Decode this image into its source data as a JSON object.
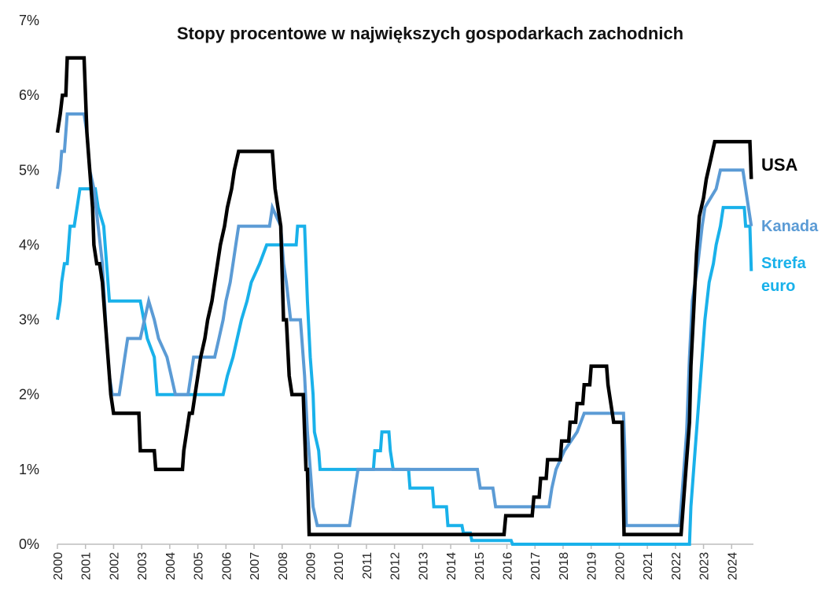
{
  "chart_data": {
    "type": "line",
    "title": "Stopy procentowe w największych gospodarkach zachodnich",
    "xlabel": "",
    "ylabel": "",
    "ylim": [
      0,
      7
    ],
    "xlim": [
      2000,
      2024.75
    ],
    "y_ticks": [
      "0%",
      "1%",
      "2%",
      "3%",
      "4%",
      "5%",
      "6%",
      "7%"
    ],
    "x_ticks": [
      "2000",
      "2001",
      "2002",
      "2003",
      "2004",
      "2005",
      "2006",
      "2007",
      "2008",
      "2009",
      "2010",
      "2011",
      "2012",
      "2013",
      "2014",
      "2015",
      "2016",
      "2017",
      "2018",
      "2019",
      "2020",
      "2021",
      "2022",
      "2023",
      "2024"
    ],
    "grid": false,
    "series": [
      {
        "name": "USA",
        "color": "#000000",
        "label_lines": [
          "USA"
        ],
        "points": [
          [
            2000.0,
            5.5
          ],
          [
            2000.1,
            5.75
          ],
          [
            2000.18,
            6.0
          ],
          [
            2000.3,
            6.0
          ],
          [
            2000.35,
            6.5
          ],
          [
            2000.95,
            6.5
          ],
          [
            2001.0,
            6.0
          ],
          [
            2001.05,
            5.5
          ],
          [
            2001.15,
            5.0
          ],
          [
            2001.25,
            4.5
          ],
          [
            2001.3,
            4.0
          ],
          [
            2001.4,
            3.75
          ],
          [
            2001.5,
            3.75
          ],
          [
            2001.6,
            3.5
          ],
          [
            2001.7,
            3.0
          ],
          [
            2001.8,
            2.5
          ],
          [
            2001.9,
            2.0
          ],
          [
            2002.0,
            1.75
          ],
          [
            2002.9,
            1.75
          ],
          [
            2002.95,
            1.25
          ],
          [
            2003.45,
            1.25
          ],
          [
            2003.5,
            1.0
          ],
          [
            2004.45,
            1.0
          ],
          [
            2004.5,
            1.25
          ],
          [
            2004.6,
            1.5
          ],
          [
            2004.7,
            1.75
          ],
          [
            2004.8,
            1.75
          ],
          [
            2004.9,
            2.0
          ],
          [
            2005.0,
            2.25
          ],
          [
            2005.1,
            2.5
          ],
          [
            2005.25,
            2.75
          ],
          [
            2005.35,
            3.0
          ],
          [
            2005.5,
            3.25
          ],
          [
            2005.6,
            3.5
          ],
          [
            2005.7,
            3.75
          ],
          [
            2005.8,
            4.0
          ],
          [
            2005.95,
            4.25
          ],
          [
            2006.05,
            4.5
          ],
          [
            2006.2,
            4.75
          ],
          [
            2006.3,
            5.0
          ],
          [
            2006.45,
            5.25
          ],
          [
            2007.65,
            5.25
          ],
          [
            2007.75,
            4.75
          ],
          [
            2007.85,
            4.5
          ],
          [
            2007.95,
            4.25
          ],
          [
            2008.05,
            3.0
          ],
          [
            2008.15,
            3.0
          ],
          [
            2008.25,
            2.25
          ],
          [
            2008.35,
            2.0
          ],
          [
            2008.75,
            2.0
          ],
          [
            2008.8,
            1.5
          ],
          [
            2008.85,
            1.0
          ],
          [
            2008.9,
            1.0
          ],
          [
            2008.96,
            0.13
          ],
          [
            2015.9,
            0.13
          ],
          [
            2015.96,
            0.38
          ],
          [
            2016.9,
            0.38
          ],
          [
            2016.96,
            0.63
          ],
          [
            2017.15,
            0.63
          ],
          [
            2017.2,
            0.88
          ],
          [
            2017.4,
            0.88
          ],
          [
            2017.45,
            1.13
          ],
          [
            2017.9,
            1.13
          ],
          [
            2017.95,
            1.38
          ],
          [
            2018.2,
            1.38
          ],
          [
            2018.25,
            1.63
          ],
          [
            2018.45,
            1.63
          ],
          [
            2018.5,
            1.88
          ],
          [
            2018.7,
            1.88
          ],
          [
            2018.75,
            2.13
          ],
          [
            2018.95,
            2.13
          ],
          [
            2019.0,
            2.38
          ],
          [
            2019.55,
            2.38
          ],
          [
            2019.6,
            2.13
          ],
          [
            2019.7,
            1.88
          ],
          [
            2019.8,
            1.63
          ],
          [
            2020.1,
            1.63
          ],
          [
            2020.17,
            0.13
          ],
          [
            2022.2,
            0.13
          ],
          [
            2022.25,
            0.38
          ],
          [
            2022.35,
            0.88
          ],
          [
            2022.5,
            1.63
          ],
          [
            2022.55,
            2.38
          ],
          [
            2022.65,
            3.13
          ],
          [
            2022.75,
            3.88
          ],
          [
            2022.85,
            4.38
          ],
          [
            2023.0,
            4.63
          ],
          [
            2023.1,
            4.88
          ],
          [
            2023.25,
            5.13
          ],
          [
            2023.4,
            5.38
          ],
          [
            2024.65,
            5.38
          ],
          [
            2024.7,
            4.88
          ]
        ]
      },
      {
        "name": "Kanada",
        "color": "#5b9bd5",
        "label_lines": [
          "Kanada"
        ],
        "points": [
          [
            2000.0,
            4.75
          ],
          [
            2000.1,
            5.0
          ],
          [
            2000.15,
            5.25
          ],
          [
            2000.25,
            5.25
          ],
          [
            2000.35,
            5.75
          ],
          [
            2000.95,
            5.75
          ],
          [
            2001.05,
            5.5
          ],
          [
            2001.15,
            5.0
          ],
          [
            2001.3,
            4.75
          ],
          [
            2001.45,
            4.25
          ],
          [
            2001.6,
            3.75
          ],
          [
            2001.75,
            2.75
          ],
          [
            2001.85,
            2.25
          ],
          [
            2001.95,
            2.0
          ],
          [
            2002.2,
            2.0
          ],
          [
            2002.3,
            2.25
          ],
          [
            2002.4,
            2.5
          ],
          [
            2002.5,
            2.75
          ],
          [
            2002.95,
            2.75
          ],
          [
            2003.1,
            3.0
          ],
          [
            2003.25,
            3.25
          ],
          [
            2003.45,
            3.0
          ],
          [
            2003.6,
            2.75
          ],
          [
            2003.9,
            2.5
          ],
          [
            2004.05,
            2.25
          ],
          [
            2004.2,
            2.0
          ],
          [
            2004.65,
            2.0
          ],
          [
            2004.75,
            2.25
          ],
          [
            2004.85,
            2.5
          ],
          [
            2005.6,
            2.5
          ],
          [
            2005.75,
            2.75
          ],
          [
            2005.9,
            3.0
          ],
          [
            2006.0,
            3.25
          ],
          [
            2006.15,
            3.5
          ],
          [
            2006.25,
            3.75
          ],
          [
            2006.35,
            4.0
          ],
          [
            2006.45,
            4.25
          ],
          [
            2007.55,
            4.25
          ],
          [
            2007.65,
            4.5
          ],
          [
            2007.95,
            4.25
          ],
          [
            2008.05,
            3.75
          ],
          [
            2008.15,
            3.5
          ],
          [
            2008.3,
            3.0
          ],
          [
            2008.65,
            3.0
          ],
          [
            2008.8,
            2.25
          ],
          [
            2008.9,
            1.5
          ],
          [
            2009.0,
            1.0
          ],
          [
            2009.1,
            0.5
          ],
          [
            2009.25,
            0.25
          ],
          [
            2010.4,
            0.25
          ],
          [
            2010.5,
            0.5
          ],
          [
            2010.6,
            0.75
          ],
          [
            2010.7,
            1.0
          ],
          [
            2014.95,
            1.0
          ],
          [
            2015.05,
            0.75
          ],
          [
            2015.5,
            0.75
          ],
          [
            2015.6,
            0.5
          ],
          [
            2017.5,
            0.5
          ],
          [
            2017.6,
            0.75
          ],
          [
            2017.75,
            1.0
          ],
          [
            2018.05,
            1.25
          ],
          [
            2018.5,
            1.5
          ],
          [
            2018.75,
            1.75
          ],
          [
            2020.15,
            1.75
          ],
          [
            2020.2,
            1.25
          ],
          [
            2020.25,
            0.25
          ],
          [
            2022.15,
            0.25
          ],
          [
            2022.2,
            0.5
          ],
          [
            2022.3,
            1.0
          ],
          [
            2022.4,
            1.5
          ],
          [
            2022.5,
            2.5
          ],
          [
            2022.6,
            3.25
          ],
          [
            2022.8,
            3.75
          ],
          [
            2022.95,
            4.25
          ],
          [
            2023.05,
            4.5
          ],
          [
            2023.45,
            4.75
          ],
          [
            2023.6,
            5.0
          ],
          [
            2024.4,
            5.0
          ],
          [
            2024.5,
            4.75
          ],
          [
            2024.6,
            4.5
          ],
          [
            2024.7,
            4.25
          ]
        ]
      },
      {
        "name": "Strefa euro",
        "color": "#19b1ea",
        "label_lines": [
          "Strefa",
          "euro"
        ],
        "points": [
          [
            2000.0,
            3.0
          ],
          [
            2000.1,
            3.25
          ],
          [
            2000.15,
            3.5
          ],
          [
            2000.25,
            3.75
          ],
          [
            2000.35,
            3.75
          ],
          [
            2000.45,
            4.25
          ],
          [
            2000.6,
            4.25
          ],
          [
            2000.7,
            4.5
          ],
          [
            2000.8,
            4.75
          ],
          [
            2001.35,
            4.75
          ],
          [
            2001.45,
            4.5
          ],
          [
            2001.65,
            4.25
          ],
          [
            2001.75,
            3.75
          ],
          [
            2001.8,
            3.5
          ],
          [
            2001.85,
            3.25
          ],
          [
            2002.95,
            3.25
          ],
          [
            2003.2,
            2.75
          ],
          [
            2003.45,
            2.5
          ],
          [
            2003.55,
            2.0
          ],
          [
            2005.9,
            2.0
          ],
          [
            2006.05,
            2.25
          ],
          [
            2006.25,
            2.5
          ],
          [
            2006.4,
            2.75
          ],
          [
            2006.55,
            3.0
          ],
          [
            2006.75,
            3.25
          ],
          [
            2006.9,
            3.5
          ],
          [
            2007.2,
            3.75
          ],
          [
            2007.45,
            4.0
          ],
          [
            2008.5,
            4.0
          ],
          [
            2008.55,
            4.25
          ],
          [
            2008.8,
            4.25
          ],
          [
            2008.85,
            3.75
          ],
          [
            2008.9,
            3.25
          ],
          [
            2009.0,
            2.5
          ],
          [
            2009.1,
            2.0
          ],
          [
            2009.15,
            1.5
          ],
          [
            2009.3,
            1.25
          ],
          [
            2009.35,
            1.0
          ],
          [
            2011.25,
            1.0
          ],
          [
            2011.3,
            1.25
          ],
          [
            2011.5,
            1.25
          ],
          [
            2011.55,
            1.5
          ],
          [
            2011.8,
            1.5
          ],
          [
            2011.85,
            1.25
          ],
          [
            2011.95,
            1.0
          ],
          [
            2012.5,
            1.0
          ],
          [
            2012.55,
            0.75
          ],
          [
            2013.35,
            0.75
          ],
          [
            2013.4,
            0.5
          ],
          [
            2013.85,
            0.5
          ],
          [
            2013.9,
            0.25
          ],
          [
            2014.4,
            0.25
          ],
          [
            2014.45,
            0.15
          ],
          [
            2014.7,
            0.15
          ],
          [
            2014.75,
            0.05
          ],
          [
            2016.15,
            0.05
          ],
          [
            2016.2,
            0.0
          ],
          [
            2022.5,
            0.0
          ],
          [
            2022.55,
            0.5
          ],
          [
            2022.7,
            1.25
          ],
          [
            2022.85,
            2.0
          ],
          [
            2022.95,
            2.5
          ],
          [
            2023.05,
            3.0
          ],
          [
            2023.2,
            3.5
          ],
          [
            2023.35,
            3.75
          ],
          [
            2023.45,
            4.0
          ],
          [
            2023.6,
            4.25
          ],
          [
            2023.7,
            4.5
          ],
          [
            2024.45,
            4.5
          ],
          [
            2024.5,
            4.25
          ],
          [
            2024.65,
            4.25
          ],
          [
            2024.7,
            3.65
          ]
        ]
      }
    ]
  }
}
